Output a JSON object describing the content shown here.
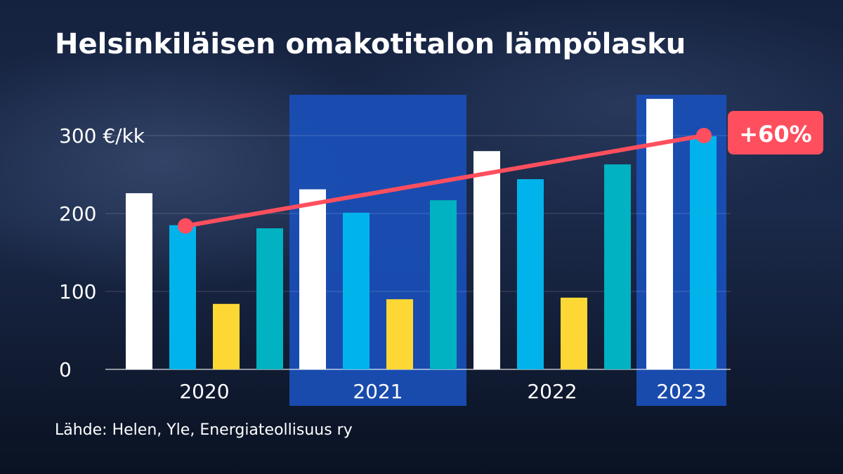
{
  "title": "Helsinkiläisen omakotitalon lämpölasku",
  "source": "Lähde: Helen, Yle, Energiateollisuus ry",
  "colors": {
    "bars": [
      "#ffffff",
      "#00b4eb",
      "#fdd835",
      "#00b2c2"
    ],
    "trend": "#ff4f5e",
    "highlight": "#1a4fb8"
  },
  "chart_data": {
    "type": "bar",
    "categories": [
      "2020",
      "2021",
      "2022",
      "2023"
    ],
    "highlighted_categories": [
      "2021",
      "2023"
    ],
    "y_ticks": [
      "0",
      "100",
      "200",
      "300 €/kk"
    ],
    "ylim": [
      0,
      340
    ],
    "grid": true,
    "bar_groups": [
      [
        226,
        185,
        84,
        181
      ],
      [
        231,
        201,
        90,
        217
      ],
      [
        280,
        244,
        92,
        263
      ],
      [
        347,
        299
      ]
    ],
    "trend_line": {
      "from": 184,
      "to": 300,
      "label": "+60%"
    }
  }
}
